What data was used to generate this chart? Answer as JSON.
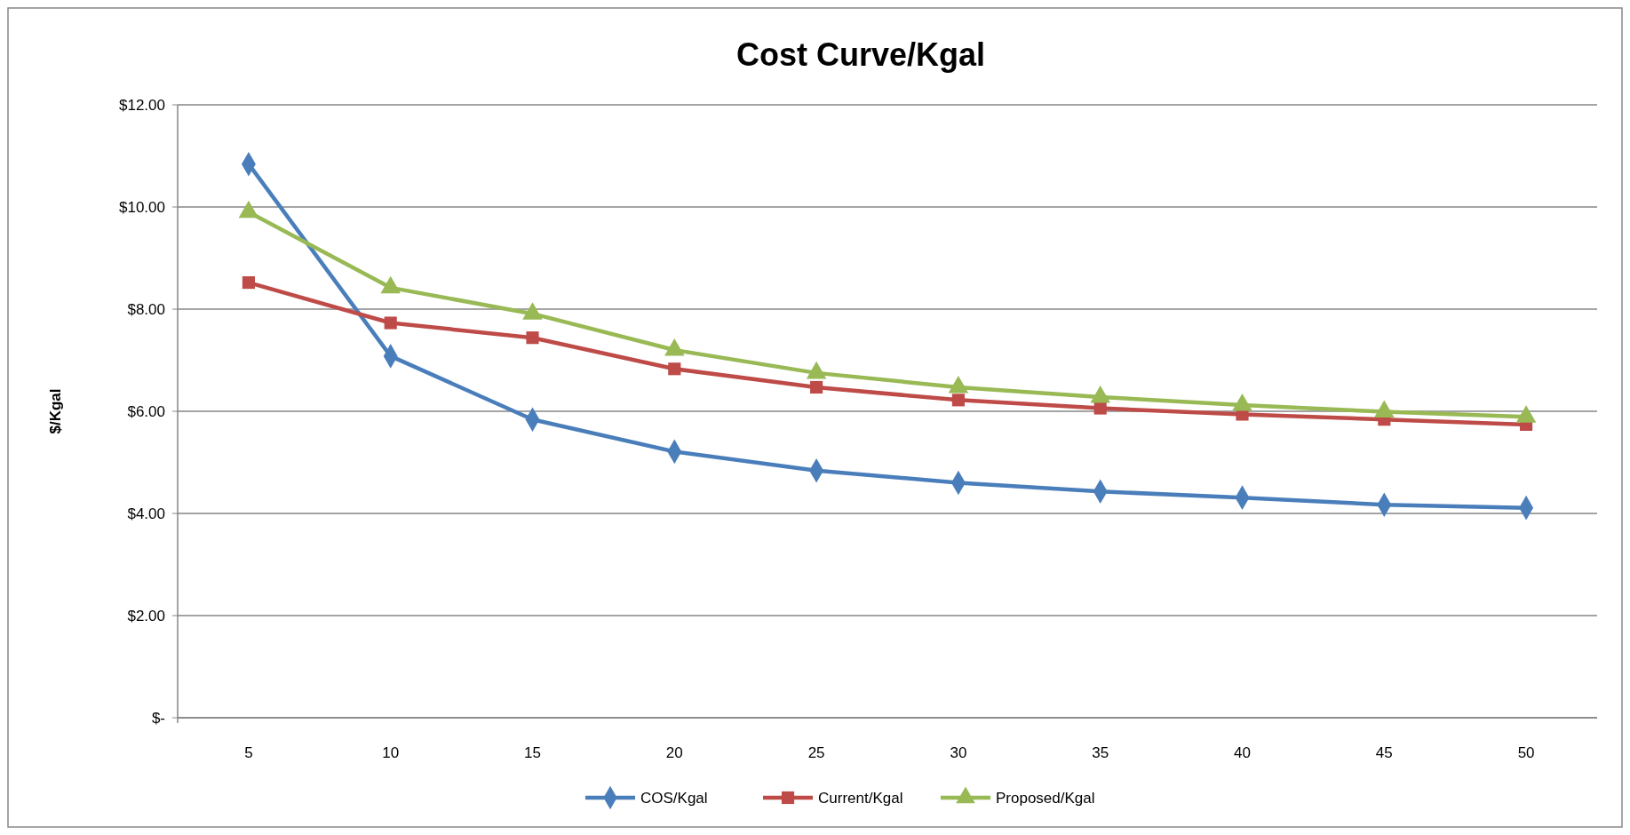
{
  "chart_data": {
    "type": "line",
    "title": "Cost Curve/Kgal",
    "ylabel": "$/Kgal",
    "categories": [
      "5",
      "10",
      "15",
      "20",
      "25",
      "30",
      "35",
      "40",
      "45",
      "50"
    ],
    "ylim": [
      0,
      12
    ],
    "yticks": [
      {
        "value": 0,
        "label": "$-"
      },
      {
        "value": 2,
        "label": "$2.00"
      },
      {
        "value": 4,
        "label": "$4.00"
      },
      {
        "value": 6,
        "label": "$6.00"
      },
      {
        "value": 8,
        "label": "$8.00"
      },
      {
        "value": 10,
        "label": "$10.00"
      },
      {
        "value": 12,
        "label": "$12.00"
      }
    ],
    "grid": "y",
    "legend": "bottom",
    "series": [
      {
        "name": "COS/Kgal",
        "color": "#4a7ebb",
        "marker": "diamond",
        "values": [
          10.84,
          7.08,
          5.84,
          5.21,
          4.84,
          4.6,
          4.43,
          4.31,
          4.17,
          4.11
        ]
      },
      {
        "name": "Current/Kgal",
        "color": "#be4b48",
        "marker": "square",
        "values": [
          8.52,
          7.73,
          7.44,
          6.83,
          6.47,
          6.22,
          6.06,
          5.94,
          5.84,
          5.74
        ]
      },
      {
        "name": "Proposed/Kgal",
        "color": "#98b954",
        "marker": "triangle",
        "values": [
          9.9,
          8.42,
          7.91,
          7.2,
          6.75,
          6.47,
          6.28,
          6.12,
          5.99,
          5.89
        ]
      }
    ]
  }
}
